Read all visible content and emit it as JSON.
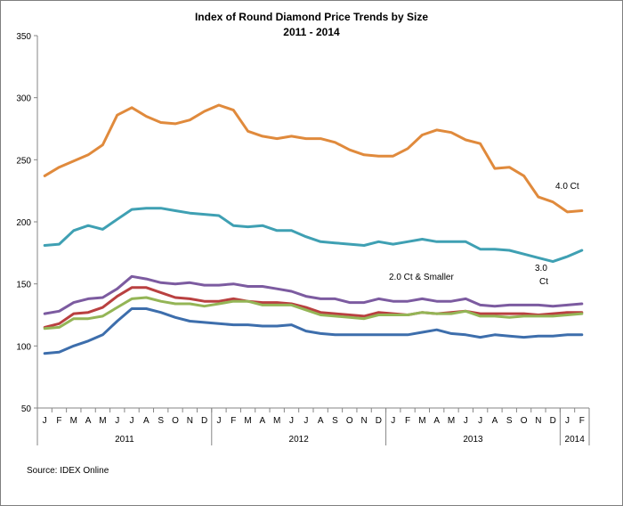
{
  "chart_data": {
    "type": "line",
    "title": "Index of Round Diamond Price Trends by Size",
    "subtitle": "2011 - 2014",
    "source": "Source:  IDEX Online",
    "ylim": [
      50,
      350
    ],
    "y_ticks": [
      50,
      100,
      150,
      200,
      250,
      300,
      350
    ],
    "grid": false,
    "x_month_labels": [
      "J",
      "F",
      "M",
      "A",
      "M",
      "J",
      "J",
      "A",
      "S",
      "O",
      "N",
      "D",
      "J",
      "F",
      "M",
      "A",
      "M",
      "J",
      "J",
      "A",
      "S",
      "O",
      "N",
      "D",
      "J",
      "F",
      "M",
      "A",
      "M",
      "J",
      "J",
      "A",
      "S",
      "O",
      "N",
      "D",
      "J",
      "F"
    ],
    "year_groups": [
      {
        "label": "2011",
        "start": 0,
        "count": 12
      },
      {
        "label": "2012",
        "start": 12,
        "count": 12
      },
      {
        "label": "2013",
        "start": 24,
        "count": 12
      },
      {
        "label": "2014",
        "start": 36,
        "count": 2
      }
    ],
    "annotations": [
      {
        "text": "4.0 Ct",
        "series": 0
      },
      {
        "text": "3.0",
        "series": 1
      },
      {
        "text": "Ct",
        "series": 1
      },
      {
        "text": "2.0 Ct & Smaller",
        "series": 2
      }
    ],
    "series": [
      {
        "color": "#e08a3c",
        "values": [
          237,
          244,
          249,
          254,
          262,
          286,
          292,
          285,
          280,
          279,
          282,
          289,
          294,
          290,
          273,
          269,
          267,
          269,
          267,
          267,
          264,
          258,
          254,
          253,
          253,
          259,
          270,
          274,
          272,
          266,
          263,
          243,
          244,
          237,
          220,
          216,
          208,
          209
        ]
      },
      {
        "color": "#3fa0b3",
        "values": [
          181,
          182,
          193,
          197,
          194,
          202,
          210,
          211,
          211,
          209,
          207,
          206,
          205,
          197,
          196,
          197,
          193,
          193,
          188,
          184,
          183,
          182,
          181,
          184,
          182,
          184,
          186,
          184,
          184,
          184,
          178,
          178,
          177,
          174,
          171,
          168,
          172,
          177
        ]
      },
      {
        "color": "#7c5ba0",
        "values": [
          126,
          128,
          135,
          138,
          139,
          146,
          156,
          154,
          151,
          150,
          151,
          149,
          149,
          150,
          148,
          148,
          146,
          144,
          140,
          138,
          138,
          135,
          135,
          138,
          136,
          136,
          138,
          136,
          136,
          138,
          133,
          132,
          133,
          133,
          133,
          132,
          133,
          134
        ]
      },
      {
        "color": "#b94040",
        "values": [
          115,
          118,
          126,
          127,
          131,
          140,
          147,
          147,
          143,
          139,
          138,
          136,
          136,
          138,
          136,
          135,
          135,
          134,
          131,
          127,
          126,
          125,
          124,
          127,
          126,
          125,
          127,
          126,
          127,
          128,
          126,
          126,
          126,
          126,
          125,
          126,
          127,
          127
        ]
      },
      {
        "color": "#94b556",
        "values": [
          114,
          115,
          122,
          122,
          124,
          131,
          138,
          139,
          136,
          134,
          134,
          132,
          134,
          136,
          136,
          133,
          133,
          133,
          129,
          125,
          124,
          123,
          122,
          125,
          125,
          125,
          127,
          126,
          126,
          128,
          124,
          124,
          123,
          124,
          124,
          124,
          125,
          126
        ]
      },
      {
        "color": "#3d6eac",
        "values": [
          94,
          95,
          100,
          104,
          109,
          120,
          130,
          130,
          127,
          123,
          120,
          119,
          118,
          117,
          117,
          116,
          116,
          117,
          112,
          110,
          109,
          109,
          109,
          109,
          109,
          109,
          111,
          113,
          110,
          109,
          107,
          109,
          108,
          107,
          108,
          108,
          109,
          109
        ]
      }
    ]
  }
}
